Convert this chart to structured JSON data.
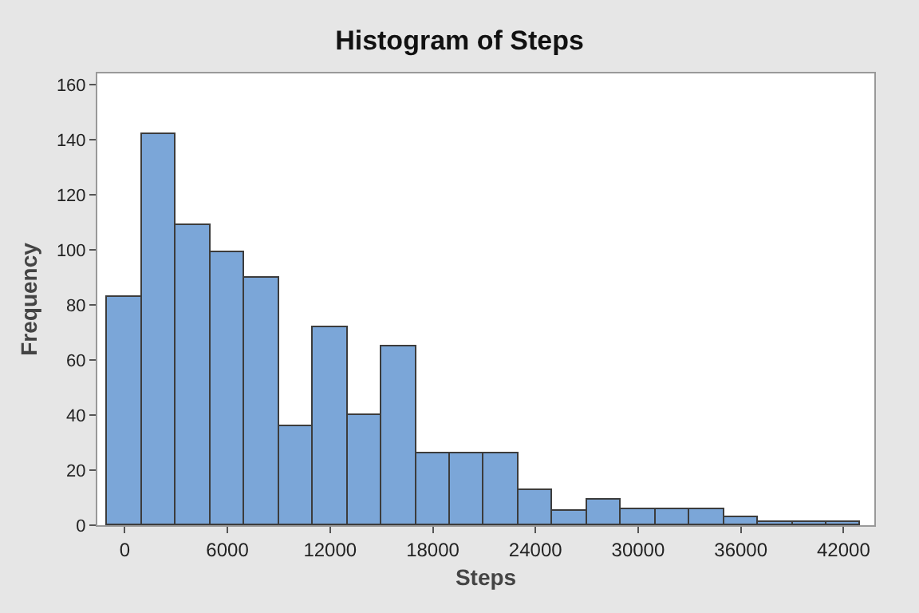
{
  "chart_data": {
    "type": "histogram",
    "title": "Histogram of Steps",
    "xlabel": "Steps",
    "ylabel": "Frequency",
    "bins": [
      -1000,
      1000,
      3000,
      5000,
      7000,
      9000,
      11000,
      13000,
      15000,
      17000,
      19000,
      21000,
      23000,
      25000,
      27000,
      29000,
      31000,
      33000,
      35000,
      37000,
      39000,
      41000,
      43000
    ],
    "values": [
      83,
      142,
      109,
      99,
      90,
      36,
      72,
      40,
      65,
      26,
      26,
      26,
      13,
      5,
      9,
      6,
      6,
      6,
      3,
      1,
      1,
      1
    ],
    "color": "#7ba6d8",
    "xlim": [
      -1600,
      43800
    ],
    "xticks": [
      0,
      6000,
      12000,
      18000,
      24000,
      30000,
      36000,
      42000
    ],
    "ylim": [
      0,
      164
    ],
    "yticks": [
      0,
      20,
      40,
      60,
      80,
      100,
      120,
      140,
      160
    ],
    "grid": false
  }
}
